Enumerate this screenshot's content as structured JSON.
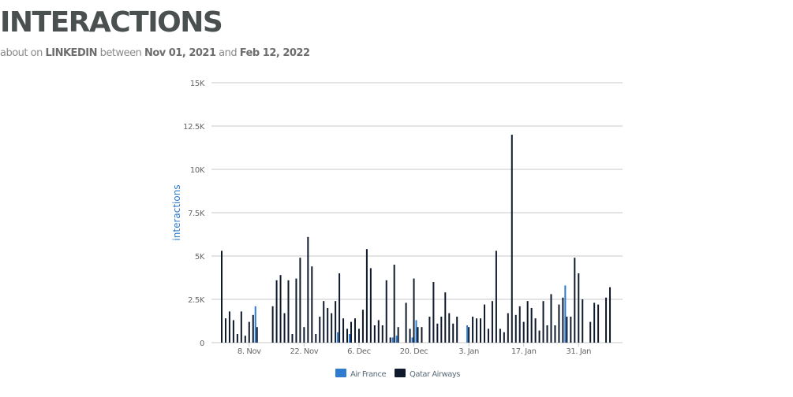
{
  "header": {
    "title": "INTERACTIONS",
    "subtitle_prefix": "about on",
    "platform": "LINKEDIN",
    "between_word": "between",
    "start_date": "Nov 01, 2021",
    "and_word": "and",
    "end_date": "Feb 12, 2022"
  },
  "colors": {
    "air_france": "#2e7bcf",
    "qatar_airways": "#0e1a2b",
    "grid": "#c8c8c8",
    "axis_label": "#2e7bcf"
  },
  "chart_data": {
    "type": "bar",
    "ylabel": "interactions",
    "xlabel": "",
    "ylim": [
      0,
      15000
    ],
    "yticks": [
      0,
      2500,
      5000,
      7500,
      10000,
      12500,
      15000
    ],
    "ytick_labels": [
      "0",
      "2.5K",
      "5K",
      "7.5K",
      "10K",
      "12.5K",
      "15K"
    ],
    "grid": true,
    "legend_position": "bottom",
    "x_start": "2021-11-01",
    "x_end": "2022-02-12",
    "xticks": [
      "2021-11-08",
      "2021-11-22",
      "2021-12-06",
      "2021-12-20",
      "2022-01-03",
      "2022-01-17",
      "2022-01-31"
    ],
    "xtick_labels": [
      "8. Nov",
      "22. Nov",
      "6. Dec",
      "20. Dec",
      "3. Jan",
      "17. Jan",
      "31. Jan"
    ],
    "series": [
      {
        "name": "Air France",
        "values": [
          [
            "2021-11-01",
            0
          ],
          [
            "2021-11-02",
            0
          ],
          [
            "2021-11-03",
            0
          ],
          [
            "2021-11-04",
            0
          ],
          [
            "2021-11-05",
            0
          ],
          [
            "2021-11-06",
            0
          ],
          [
            "2021-11-07",
            0
          ],
          [
            "2021-11-08",
            0
          ],
          [
            "2021-11-09",
            0
          ],
          [
            "2021-11-10",
            2100
          ],
          [
            "2021-11-11",
            0
          ],
          [
            "2021-11-12",
            0
          ],
          [
            "2021-11-13",
            0
          ],
          [
            "2021-11-14",
            0
          ],
          [
            "2021-11-15",
            0
          ],
          [
            "2021-11-16",
            0
          ],
          [
            "2021-11-17",
            0
          ],
          [
            "2021-11-18",
            0
          ],
          [
            "2021-11-19",
            0
          ],
          [
            "2021-11-20",
            0
          ],
          [
            "2021-11-21",
            0
          ],
          [
            "2021-11-22",
            0
          ],
          [
            "2021-11-23",
            0
          ],
          [
            "2021-11-24",
            0
          ],
          [
            "2021-11-25",
            0
          ],
          [
            "2021-11-26",
            0
          ],
          [
            "2021-11-27",
            0
          ],
          [
            "2021-11-28",
            0
          ],
          [
            "2021-11-29",
            0
          ],
          [
            "2021-11-30",
            0
          ],
          [
            "2021-12-01",
            600
          ],
          [
            "2021-12-02",
            0
          ],
          [
            "2021-12-03",
            0
          ],
          [
            "2021-12-04",
            500
          ],
          [
            "2021-12-05",
            0
          ],
          [
            "2021-12-06",
            0
          ],
          [
            "2021-12-07",
            0
          ],
          [
            "2021-12-08",
            0
          ],
          [
            "2021-12-09",
            0
          ],
          [
            "2021-12-10",
            0
          ],
          [
            "2021-12-11",
            0
          ],
          [
            "2021-12-12",
            0
          ],
          [
            "2021-12-13",
            0
          ],
          [
            "2021-12-14",
            0
          ],
          [
            "2021-12-15",
            300
          ],
          [
            "2021-12-16",
            400
          ],
          [
            "2021-12-17",
            0
          ],
          [
            "2021-12-18",
            0
          ],
          [
            "2021-12-19",
            0
          ],
          [
            "2021-12-20",
            300
          ],
          [
            "2021-12-21",
            1300
          ],
          [
            "2021-12-22",
            0
          ],
          [
            "2021-12-23",
            0
          ],
          [
            "2021-12-24",
            0
          ],
          [
            "2021-12-25",
            0
          ],
          [
            "2021-12-26",
            0
          ],
          [
            "2021-12-27",
            0
          ],
          [
            "2021-12-28",
            0
          ],
          [
            "2021-12-29",
            0
          ],
          [
            "2021-12-30",
            0
          ],
          [
            "2021-12-31",
            0
          ],
          [
            "2022-01-01",
            0
          ],
          [
            "2022-01-02",
            0
          ],
          [
            "2022-01-03",
            1000
          ],
          [
            "2022-01-04",
            0
          ],
          [
            "2022-01-05",
            0
          ],
          [
            "2022-01-06",
            0
          ],
          [
            "2022-01-07",
            0
          ],
          [
            "2022-01-08",
            0
          ],
          [
            "2022-01-09",
            0
          ],
          [
            "2022-01-10",
            0
          ],
          [
            "2022-01-11",
            0
          ],
          [
            "2022-01-12",
            0
          ],
          [
            "2022-01-13",
            0
          ],
          [
            "2022-01-14",
            0
          ],
          [
            "2022-01-15",
            0
          ],
          [
            "2022-01-16",
            0
          ],
          [
            "2022-01-17",
            0
          ],
          [
            "2022-01-18",
            0
          ],
          [
            "2022-01-19",
            0
          ],
          [
            "2022-01-20",
            0
          ],
          [
            "2022-01-21",
            0
          ],
          [
            "2022-01-22",
            0
          ],
          [
            "2022-01-23",
            0
          ],
          [
            "2022-01-24",
            0
          ],
          [
            "2022-01-25",
            0
          ],
          [
            "2022-01-26",
            0
          ],
          [
            "2022-01-27",
            0
          ],
          [
            "2022-01-28",
            3300
          ],
          [
            "2022-01-29",
            0
          ],
          [
            "2022-01-30",
            0
          ],
          [
            "2022-01-31",
            0
          ],
          [
            "2022-02-01",
            0
          ],
          [
            "2022-02-02",
            0
          ],
          [
            "2022-02-03",
            0
          ],
          [
            "2022-02-04",
            0
          ],
          [
            "2022-02-05",
            0
          ],
          [
            "2022-02-06",
            0
          ],
          [
            "2022-02-07",
            0
          ],
          [
            "2022-02-08",
            0
          ],
          [
            "2022-02-09",
            0
          ],
          [
            "2022-02-10",
            0
          ],
          [
            "2022-02-11",
            0
          ],
          [
            "2022-02-12",
            0
          ]
        ]
      },
      {
        "name": "Qatar Airways",
        "values": [
          [
            "2021-11-01",
            5300
          ],
          [
            "2021-11-02",
            1400
          ],
          [
            "2021-11-03",
            1800
          ],
          [
            "2021-11-04",
            1300
          ],
          [
            "2021-11-05",
            500
          ],
          [
            "2021-11-06",
            1800
          ],
          [
            "2021-11-07",
            400
          ],
          [
            "2021-11-08",
            1200
          ],
          [
            "2021-11-09",
            1600
          ],
          [
            "2021-11-10",
            900
          ],
          [
            "2021-11-11",
            0
          ],
          [
            "2021-11-12",
            0
          ],
          [
            "2021-11-13",
            0
          ],
          [
            "2021-11-14",
            2100
          ],
          [
            "2021-11-15",
            3600
          ],
          [
            "2021-11-16",
            3900
          ],
          [
            "2021-11-17",
            1700
          ],
          [
            "2021-11-18",
            3600
          ],
          [
            "2021-11-19",
            500
          ],
          [
            "2021-11-20",
            3700
          ],
          [
            "2021-11-21",
            4900
          ],
          [
            "2021-11-22",
            900
          ],
          [
            "2021-11-23",
            6100
          ],
          [
            "2021-11-24",
            4400
          ],
          [
            "2021-11-25",
            500
          ],
          [
            "2021-11-26",
            1500
          ],
          [
            "2021-11-27",
            2400
          ],
          [
            "2021-11-28",
            2000
          ],
          [
            "2021-11-29",
            1700
          ],
          [
            "2021-11-30",
            2400
          ],
          [
            "2021-12-01",
            4000
          ],
          [
            "2021-12-02",
            1400
          ],
          [
            "2021-12-03",
            800
          ],
          [
            "2021-12-04",
            1200
          ],
          [
            "2021-12-05",
            1400
          ],
          [
            "2021-12-06",
            800
          ],
          [
            "2021-12-07",
            1900
          ],
          [
            "2021-12-08",
            5400
          ],
          [
            "2021-12-09",
            4300
          ],
          [
            "2021-12-10",
            1000
          ],
          [
            "2021-12-11",
            1300
          ],
          [
            "2021-12-12",
            1000
          ],
          [
            "2021-12-13",
            3600
          ],
          [
            "2021-12-14",
            300
          ],
          [
            "2021-12-15",
            4500
          ],
          [
            "2021-12-16",
            900
          ],
          [
            "2021-12-17",
            0
          ],
          [
            "2021-12-18",
            2300
          ],
          [
            "2021-12-19",
            800
          ],
          [
            "2021-12-20",
            3700
          ],
          [
            "2021-12-21",
            900
          ],
          [
            "2021-12-22",
            900
          ],
          [
            "2021-12-23",
            0
          ],
          [
            "2021-12-24",
            1500
          ],
          [
            "2021-12-25",
            3500
          ],
          [
            "2021-12-26",
            1100
          ],
          [
            "2021-12-27",
            1500
          ],
          [
            "2021-12-28",
            2900
          ],
          [
            "2021-12-29",
            1700
          ],
          [
            "2021-12-30",
            1100
          ],
          [
            "2021-12-31",
            1500
          ],
          [
            "2022-01-01",
            0
          ],
          [
            "2022-01-02",
            0
          ],
          [
            "2022-01-03",
            900
          ],
          [
            "2022-01-04",
            1500
          ],
          [
            "2022-01-05",
            1400
          ],
          [
            "2022-01-06",
            1400
          ],
          [
            "2022-01-07",
            2200
          ],
          [
            "2022-01-08",
            800
          ],
          [
            "2022-01-09",
            2400
          ],
          [
            "2022-01-10",
            5300
          ],
          [
            "2022-01-11",
            800
          ],
          [
            "2022-01-12",
            600
          ],
          [
            "2022-01-13",
            1700
          ],
          [
            "2022-01-14",
            12000
          ],
          [
            "2022-01-15",
            1600
          ],
          [
            "2022-01-16",
            2100
          ],
          [
            "2022-01-17",
            1200
          ],
          [
            "2022-01-18",
            2400
          ],
          [
            "2022-01-19",
            2000
          ],
          [
            "2022-01-20",
            1400
          ],
          [
            "2022-01-21",
            700
          ],
          [
            "2022-01-22",
            2400
          ],
          [
            "2022-01-23",
            1000
          ],
          [
            "2022-01-24",
            2800
          ],
          [
            "2022-01-25",
            1000
          ],
          [
            "2022-01-26",
            2200
          ],
          [
            "2022-01-27",
            2600
          ],
          [
            "2022-01-28",
            1500
          ],
          [
            "2022-01-29",
            1500
          ],
          [
            "2022-01-30",
            4900
          ],
          [
            "2022-01-31",
            4000
          ],
          [
            "2022-02-01",
            2500
          ],
          [
            "2022-02-02",
            0
          ],
          [
            "2022-02-03",
            1200
          ],
          [
            "2022-02-04",
            2300
          ],
          [
            "2022-02-05",
            2200
          ],
          [
            "2022-02-06",
            0
          ],
          [
            "2022-02-07",
            2600
          ],
          [
            "2022-02-08",
            3200
          ],
          [
            "2022-02-09",
            0
          ],
          [
            "2022-02-10",
            0
          ],
          [
            "2022-02-11",
            0
          ],
          [
            "2022-02-12",
            0
          ]
        ]
      }
    ]
  }
}
